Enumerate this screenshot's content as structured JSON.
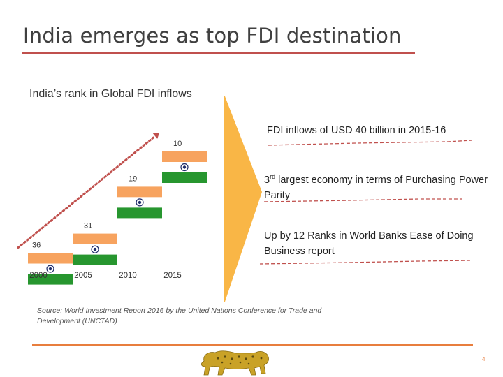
{
  "title": "India emerges as top FDI destination",
  "subtitle": "India’s rank in Global FDI inflows",
  "chart_data": {
    "type": "bar",
    "categories": [
      "2000",
      "2005",
      "2010",
      "2015"
    ],
    "values": [
      36,
      31,
      19,
      10
    ],
    "value_labels": [
      "36",
      "31",
      "19",
      "10"
    ],
    "note": "Lower rank is better; bars drawn as Indian tricolour flags",
    "colors": {
      "saffron": "#f7a35f",
      "white": "#ffffff",
      "green": "#27962f",
      "chakra": "#1f2d6b",
      "trend": "#c0504d"
    }
  },
  "highlights": {
    "item1": "FDI inflows of USD 40 billion in 2015-16",
    "item2_prefix": "3",
    "item2_sup": "rd",
    "item2_rest": " largest economy in terms of Purchasing Power Parity",
    "item3": "Up by 12 Ranks in World Banks Ease of Doing Business report"
  },
  "colors": {
    "arrow": "#f9b646",
    "title_rule": "#c0504d",
    "bottom_rule": "#e87e3e",
    "dash": "#c0504d"
  },
  "source": "Source: World Investment Report 2016 by the United Nations Conference for Trade and Development (UNCTAD)",
  "page_number": "4",
  "logo": "lion-logo-icon"
}
